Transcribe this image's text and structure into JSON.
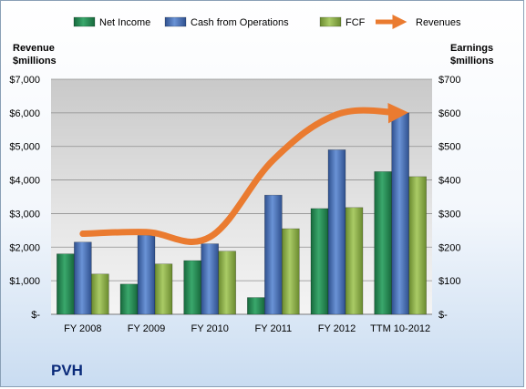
{
  "company": "PVH",
  "left_axis_title": [
    "Revenue",
    "$millions"
  ],
  "right_axis_title": [
    "Earnings",
    "$millions"
  ],
  "chart_data": {
    "type": "bar",
    "categories": [
      "FY 2008",
      "FY 2009",
      "FY 2010",
      "FY 2011",
      "FY 2012",
      "TTM 10-2012"
    ],
    "series": [
      {
        "name": "Net Income",
        "axis": "right",
        "color": "#1f8a52",
        "values": [
          180,
          90,
          160,
          50,
          315,
          425
        ]
      },
      {
        "name": "Cash from Operations",
        "axis": "right",
        "color": "#4a73b8",
        "values": [
          215,
          235,
          210,
          355,
          490,
          600
        ]
      },
      {
        "name": "FCF",
        "axis": "right",
        "color": "#8fb04a",
        "values": [
          120,
          150,
          188,
          255,
          318,
          410
        ]
      },
      {
        "name": "Revenues",
        "axis": "left",
        "type": "line",
        "color": "#ea7b30",
        "values": [
          2400,
          2450,
          2300,
          4600,
          5950,
          6000
        ]
      }
    ],
    "left_axis": {
      "ylim": [
        0,
        7000
      ],
      "ticks": [
        "$-",
        "$1,000",
        "$2,000",
        "$3,000",
        "$4,000",
        "$5,000",
        "$6,000",
        "$7,000"
      ]
    },
    "right_axis": {
      "ylim": [
        0,
        700
      ],
      "ticks": [
        "$-",
        "$100",
        "$200",
        "$300",
        "$400",
        "$500",
        "$600",
        "$700"
      ]
    },
    "legend_position": "top",
    "grid": true
  }
}
